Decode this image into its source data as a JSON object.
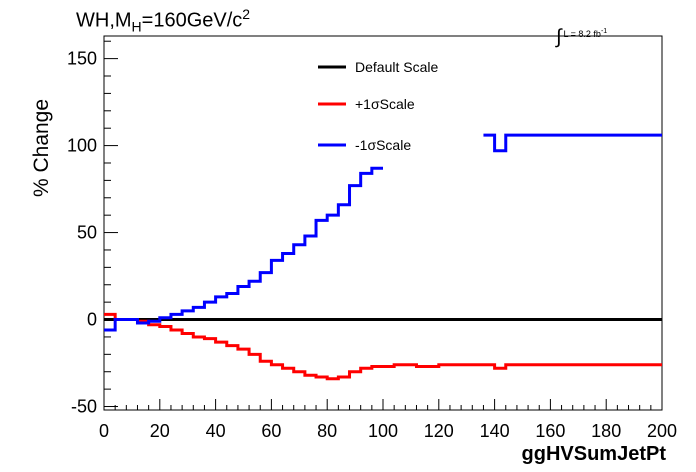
{
  "title": {
    "prefix": "WH,M",
    "subscript": "H",
    "suffix": "=160GeV/c",
    "superscript": "2"
  },
  "lumi": {
    "integral": "∫",
    "text": "L = 8.2 fb",
    "superscript": "-1"
  },
  "chart_data": {
    "type": "line",
    "title": "WH,MH=160GeV/c2",
    "xlabel": "ggHVSumJetPt",
    "ylabel": "% Change",
    "xlim": [
      0,
      200
    ],
    "ylim": [
      -52,
      163
    ],
    "xticks": [
      0,
      20,
      40,
      60,
      80,
      100,
      120,
      140,
      160,
      180,
      200
    ],
    "yticks": [
      -50,
      0,
      50,
      100,
      150
    ],
    "grid": false,
    "legend_position": "top-center",
    "bin_edges": [
      0,
      4,
      8,
      12,
      16,
      20,
      24,
      28,
      32,
      36,
      40,
      44,
      48,
      52,
      56,
      60,
      64,
      68,
      72,
      76,
      80,
      84,
      88,
      92,
      96,
      100,
      104,
      108,
      112,
      116,
      120,
      124,
      128,
      132,
      136,
      140,
      144,
      148,
      152,
      156,
      160,
      164,
      168,
      172,
      176,
      180,
      184,
      188,
      192,
      196,
      200
    ],
    "series": [
      {
        "name": "Default Scale",
        "color": "#000000",
        "values": [
          0,
          0,
          0,
          0,
          0,
          0,
          0,
          0,
          0,
          0,
          0,
          0,
          0,
          0,
          0,
          0,
          0,
          0,
          0,
          0,
          0,
          0,
          0,
          0,
          0,
          0,
          0,
          0,
          0,
          0,
          0,
          0,
          0,
          0,
          0,
          0,
          0,
          0,
          0,
          0,
          0,
          0,
          0,
          0,
          0,
          0,
          0,
          0,
          0,
          0
        ]
      },
      {
        "name": "+1σScale",
        "color": "#ff0000",
        "values": [
          3,
          0,
          0,
          -1,
          -3,
          -4,
          -6,
          -8,
          -10,
          -11,
          -13,
          -15,
          -17,
          -20,
          -24,
          -26,
          -28,
          -30,
          -32,
          -33,
          -34,
          -33,
          -30,
          -28,
          -27,
          -27,
          -26,
          -26,
          -27,
          -27,
          -26,
          -26,
          -26,
          -26,
          -26,
          -28,
          -26,
          -26,
          -26,
          -26,
          -26,
          -26,
          -26,
          -26,
          -26,
          -26,
          -26,
          -26,
          -26,
          -26
        ]
      },
      {
        "name": "-1σScale",
        "color": "#0000ff",
        "values": [
          -6,
          0,
          0,
          -2,
          -1,
          1,
          3,
          5,
          7,
          10,
          13,
          15,
          19,
          22,
          27,
          34,
          38,
          43,
          48,
          57,
          60,
          66,
          77,
          84,
          87,
          null,
          null,
          null,
          null,
          null,
          null,
          null,
          null,
          null,
          106,
          97,
          106,
          106,
          106,
          106,
          106,
          106,
          106,
          106,
          106,
          106,
          106,
          106,
          106,
          106
        ]
      }
    ]
  }
}
